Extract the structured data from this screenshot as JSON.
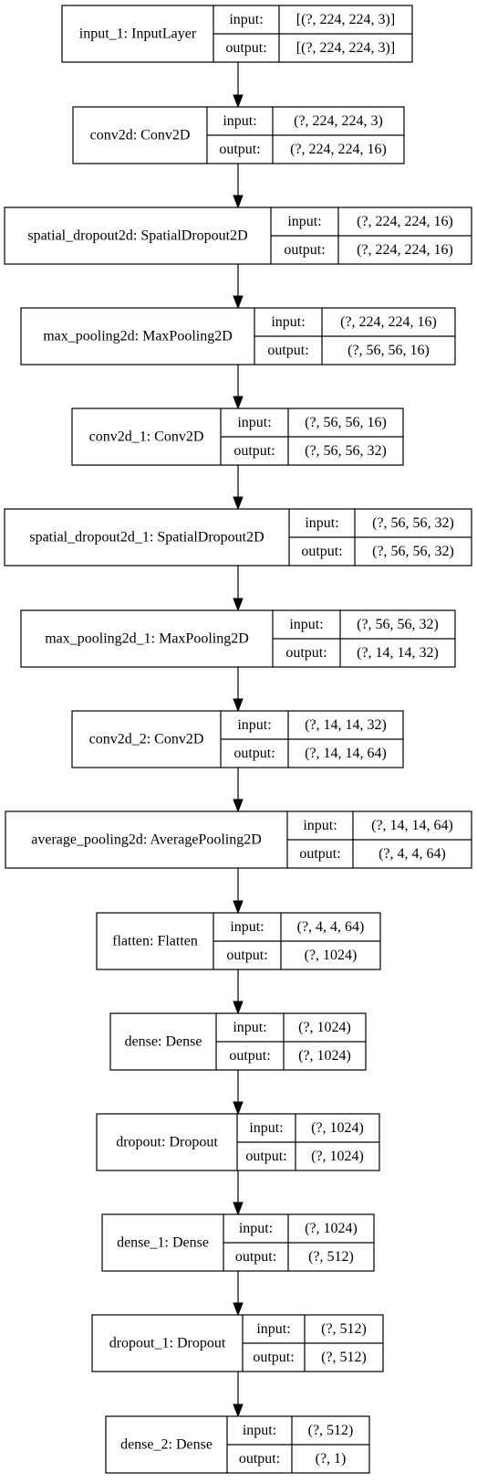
{
  "labels": {
    "input": "input:",
    "output": "output:"
  },
  "layers": [
    {
      "name": "input_1: InputLayer",
      "input": "[(?, 224, 224, 3)]",
      "output": "[(?, 224, 224, 3)]"
    },
    {
      "name": "conv2d: Conv2D",
      "input": "(?, 224, 224, 3)",
      "output": "(?, 224, 224, 16)"
    },
    {
      "name": "spatial_dropout2d: SpatialDropout2D",
      "input": "(?, 224, 224, 16)",
      "output": "(?, 224, 224, 16)"
    },
    {
      "name": "max_pooling2d: MaxPooling2D",
      "input": "(?, 224, 224, 16)",
      "output": "(?, 56, 56, 16)"
    },
    {
      "name": "conv2d_1: Conv2D",
      "input": "(?, 56, 56, 16)",
      "output": "(?, 56, 56, 32)"
    },
    {
      "name": "spatial_dropout2d_1: SpatialDropout2D",
      "input": "(?, 56, 56, 32)",
      "output": "(?, 56, 56, 32)"
    },
    {
      "name": "max_pooling2d_1: MaxPooling2D",
      "input": "(?, 56, 56, 32)",
      "output": "(?, 14, 14, 32)"
    },
    {
      "name": "conv2d_2: Conv2D",
      "input": "(?, 14, 14, 32)",
      "output": "(?, 14, 14, 64)"
    },
    {
      "name": "average_pooling2d: AveragePooling2D",
      "input": "(?, 14, 14, 64)",
      "output": "(?, 4, 4, 64)"
    },
    {
      "name": "flatten: Flatten",
      "input": "(?, 4, 4, 64)",
      "output": "(?, 1024)"
    },
    {
      "name": "dense: Dense",
      "input": "(?, 1024)",
      "output": "(?, 1024)"
    },
    {
      "name": "dropout: Dropout",
      "input": "(?, 1024)",
      "output": "(?, 1024)"
    },
    {
      "name": "dense_1: Dense",
      "input": "(?, 1024)",
      "output": "(?, 512)"
    },
    {
      "name": "dropout_1: Dropout",
      "input": "(?, 512)",
      "output": "(?, 512)"
    },
    {
      "name": "dense_2: Dense",
      "input": "(?, 512)",
      "output": "(?, 1)"
    }
  ]
}
